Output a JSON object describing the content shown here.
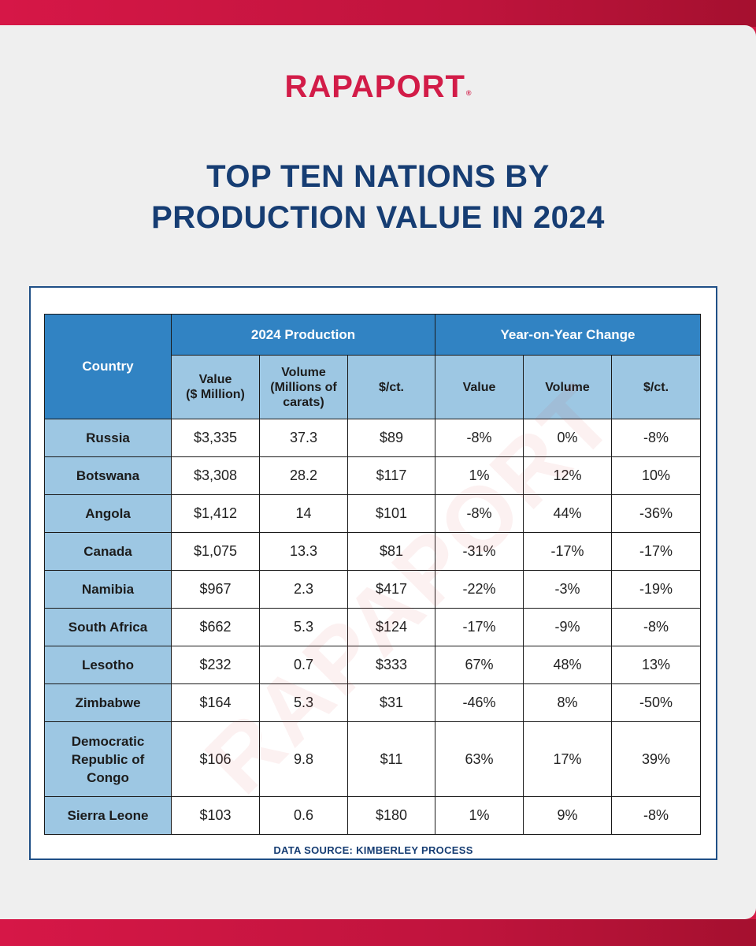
{
  "brand": {
    "name": "RAPAPORT",
    "mark": "®"
  },
  "title_lines": [
    "TOP TEN NATIONS BY",
    "PRODUCTION VALUE IN 2024"
  ],
  "watermark": "RAPAPORT",
  "source": "DATA SOURCE: KIMBERLEY PROCESS",
  "colors": {
    "accent": "#d21c48",
    "title": "#163d73",
    "header_dark": "#3183c3",
    "header_light": "#9dc7e3"
  },
  "chart_data": {
    "type": "table",
    "title": "TOP TEN NATIONS BY PRODUCTION VALUE IN 2024",
    "column_groups": {
      "country": "Country",
      "production": "2024 Production",
      "change": "Year-on-Year Change"
    },
    "subheaders": {
      "production_value": [
        "Value",
        "($ Million)"
      ],
      "production_volume": [
        "Volume",
        "(Millions of",
        "carats)"
      ],
      "production_price": "$/ct.",
      "change_value": "Value",
      "change_volume": "Volume",
      "change_price": "$/ct."
    },
    "rows": [
      {
        "country": [
          "Russia"
        ],
        "value": "$3,335",
        "volume": "37.3",
        "price": "$89",
        "yoy_value": "-8%",
        "yoy_volume": "0%",
        "yoy_price": "-8%"
      },
      {
        "country": [
          "Botswana"
        ],
        "value": "$3,308",
        "volume": "28.2",
        "price": "$117",
        "yoy_value": "1%",
        "yoy_volume": "12%",
        "yoy_price": "10%"
      },
      {
        "country": [
          "Angola"
        ],
        "value": "$1,412",
        "volume": "14",
        "price": "$101",
        "yoy_value": "-8%",
        "yoy_volume": "44%",
        "yoy_price": "-36%"
      },
      {
        "country": [
          "Canada"
        ],
        "value": "$1,075",
        "volume": "13.3",
        "price": "$81",
        "yoy_value": "-31%",
        "yoy_volume": "-17%",
        "yoy_price": "-17%"
      },
      {
        "country": [
          "Namibia"
        ],
        "value": "$967",
        "volume": "2.3",
        "price": "$417",
        "yoy_value": "-22%",
        "yoy_volume": "-3%",
        "yoy_price": "-19%"
      },
      {
        "country": [
          "South Africa"
        ],
        "value": "$662",
        "volume": "5.3",
        "price": "$124",
        "yoy_value": "-17%",
        "yoy_volume": "-9%",
        "yoy_price": "-8%"
      },
      {
        "country": [
          "Lesotho"
        ],
        "value": "$232",
        "volume": "0.7",
        "price": "$333",
        "yoy_value": "67%",
        "yoy_volume": "48%",
        "yoy_price": "13%"
      },
      {
        "country": [
          "Zimbabwe"
        ],
        "value": "$164",
        "volume": "5.3",
        "price": "$31",
        "yoy_value": "-46%",
        "yoy_volume": "8%",
        "yoy_price": "-50%"
      },
      {
        "country": [
          "Democratic",
          "Republic of",
          "Congo"
        ],
        "value": "$106",
        "volume": "9.8",
        "price": "$11",
        "yoy_value": "63%",
        "yoy_volume": "17%",
        "yoy_price": "39%"
      },
      {
        "country": [
          "Sierra Leone"
        ],
        "value": "$103",
        "volume": "0.6",
        "price": "$180",
        "yoy_value": "1%",
        "yoy_volume": "9%",
        "yoy_price": "-8%"
      }
    ]
  }
}
